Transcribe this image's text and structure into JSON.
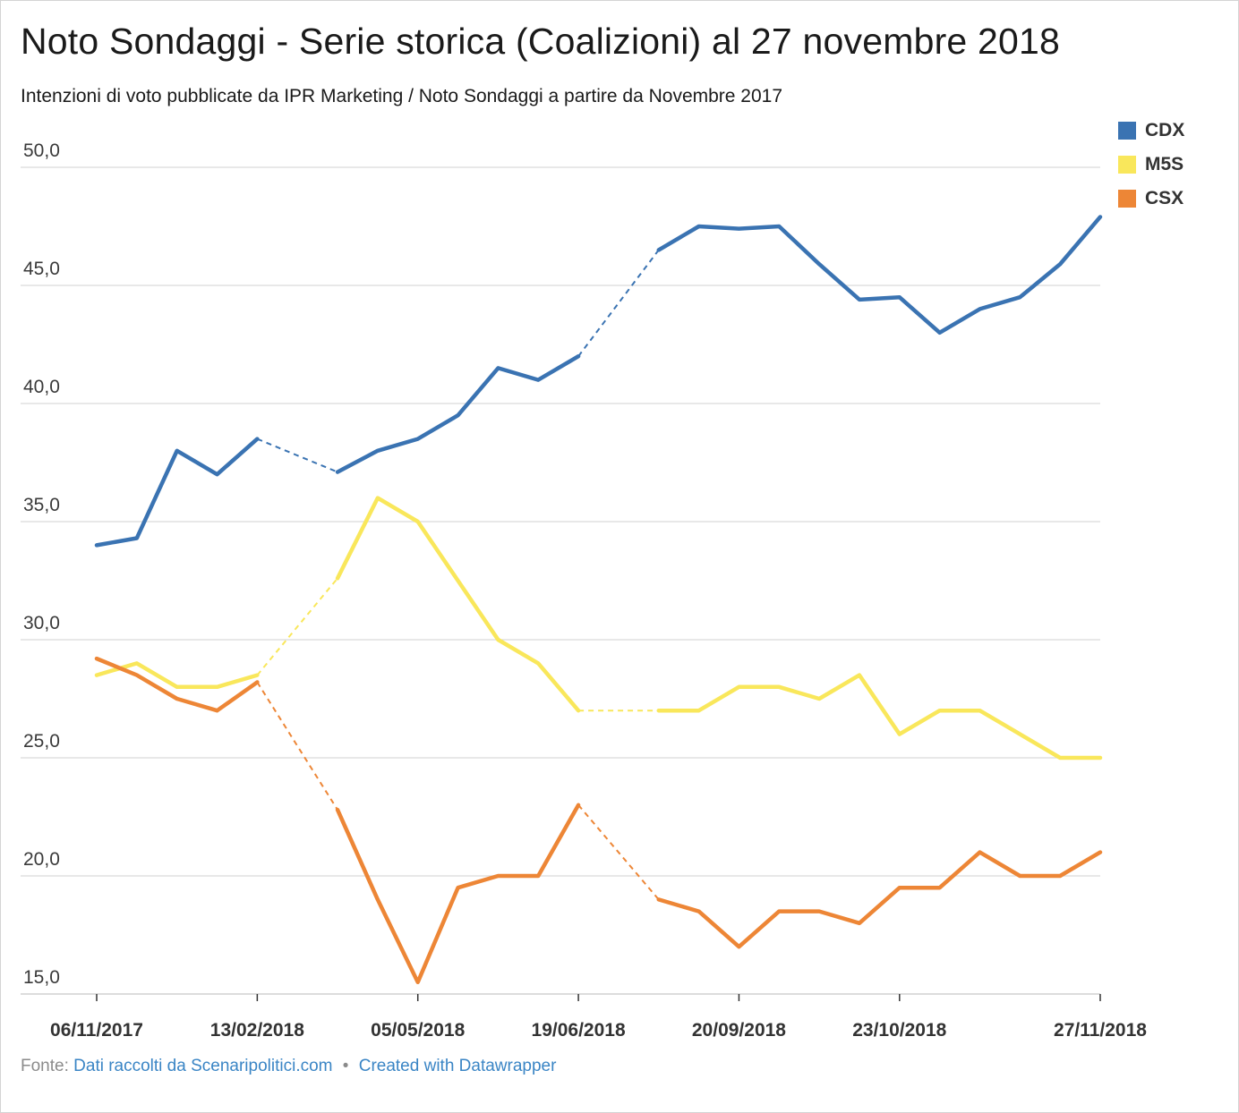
{
  "header": {
    "title": "Noto Sondaggi - Serie storica (Coalizioni) al 27 novembre 2018",
    "subtitle": "Intenzioni di voto pubblicate da IPR Marketing / Noto Sondaggi a partire da Novembre 2017"
  },
  "legend": [
    {
      "label": "CDX",
      "color": "#3a73b2"
    },
    {
      "label": "M5S",
      "color": "#f9e75b"
    },
    {
      "label": "CSX",
      "color": "#ed8636"
    }
  ],
  "footer": {
    "prefix": "Fonte:",
    "source": "Dati raccolti da Scenaripolitici.com",
    "separator": "•",
    "credit": "Created with Datawrapper"
  },
  "chart_data": {
    "type": "line",
    "title": "Noto Sondaggi - Serie storica (Coalizioni) al 27 novembre 2018",
    "subtitle": "Intenzioni di voto pubblicate da IPR Marketing / Noto Sondaggi a partire da Novembre 2017",
    "xlabel": "",
    "ylabel": "",
    "ylim": [
      15,
      50
    ],
    "yticks": [
      "50,0",
      "45,0",
      "40,0",
      "35,0",
      "30,0",
      "25,0",
      "20,0",
      "15,0"
    ],
    "grid": true,
    "legend_position": "top-right",
    "x_tick_labels": [
      "06/11/2017",
      "13/02/2018",
      "05/05/2018",
      "19/06/2018",
      "20/09/2018",
      "23/10/2018",
      "27/11/2018"
    ],
    "x_tick_indices": [
      0,
      4,
      8,
      12,
      16,
      20,
      25
    ],
    "dashed_segments_note": "gaps between surveys drawn dashed",
    "series": [
      {
        "name": "CDX",
        "color": "#3a73b2",
        "values": [
          34.0,
          34.3,
          38.0,
          37.0,
          38.5,
          null,
          37.1,
          38.0,
          38.5,
          39.5,
          41.5,
          41.0,
          42.0,
          null,
          46.5,
          47.5,
          47.4,
          47.5,
          45.9,
          44.4,
          44.5,
          43.0,
          44.0,
          44.5,
          45.9,
          47.9
        ],
        "dashed": [
          [
            4,
            6
          ],
          [
            12,
            14
          ]
        ]
      },
      {
        "name": "M5S",
        "color": "#f9e75b",
        "values": [
          28.5,
          29.0,
          28.0,
          28.0,
          28.5,
          null,
          32.6,
          36.0,
          35.0,
          32.5,
          30.0,
          29.0,
          27.0,
          null,
          27.0,
          27.0,
          28.0,
          28.0,
          27.5,
          28.5,
          26.0,
          27.0,
          27.0,
          26.0,
          25.0,
          25.0
        ],
        "dashed": [
          [
            4,
            6
          ],
          [
            12,
            14
          ]
        ]
      },
      {
        "name": "CSX",
        "color": "#ed8636",
        "values": [
          29.2,
          28.5,
          27.5,
          27.0,
          28.2,
          null,
          22.8,
          19.0,
          15.5,
          19.5,
          20.0,
          20.0,
          23.0,
          null,
          19.0,
          18.5,
          17.0,
          18.5,
          18.5,
          18.0,
          19.5,
          19.5,
          21.0,
          20.0,
          20.0,
          21.0
        ],
        "dashed": [
          [
            4,
            6
          ],
          [
            12,
            14
          ]
        ]
      }
    ]
  }
}
